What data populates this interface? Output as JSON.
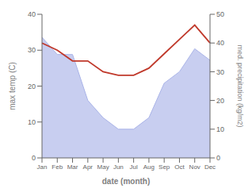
{
  "chart_data": {
    "type": "line",
    "xlabel": "date (month)",
    "ylabel": "max temp (C)",
    "y2label": "med. precipitation (kg/m2)",
    "categories": [
      "Jan",
      "Feb",
      "Mar",
      "Apr",
      "May",
      "Jun",
      "Jul",
      "Aug",
      "Sep",
      "Oct",
      "Nov",
      "Dec"
    ],
    "series": [
      {
        "type": "line",
        "color": "#c0392b",
        "values": [
          32,
          30,
          27,
          27,
          24,
          23,
          23,
          25,
          29,
          33,
          37,
          32
        ]
      },
      {
        "type": "area",
        "axis": "y2",
        "color": "#aab4e8",
        "values": [
          42,
          36,
          36,
          20,
          14,
          10,
          10,
          14,
          26,
          30,
          38,
          34
        ]
      }
    ],
    "ylim": [
      0,
      40
    ],
    "yticks": [
      0,
      10,
      20,
      30,
      40
    ],
    "y2lim": [
      0,
      50
    ],
    "y2ticks": [
      0,
      10,
      20,
      30,
      40,
      50
    ],
    "grid": false
  }
}
